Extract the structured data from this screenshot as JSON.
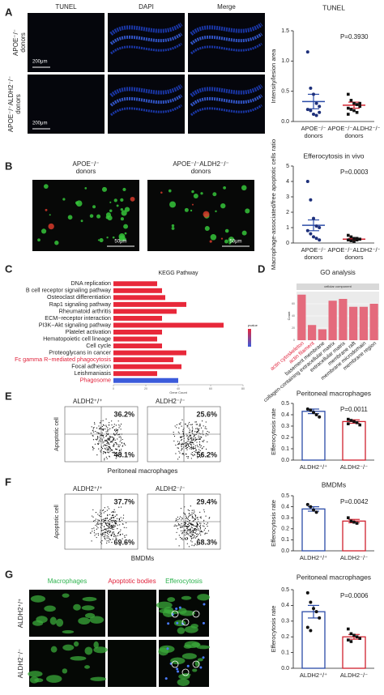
{
  "figure": {
    "panel_labels": [
      "A",
      "B",
      "C",
      "D",
      "E",
      "F",
      "G"
    ],
    "a": {
      "columns": [
        "TUNEL",
        "DAPI",
        "Merge"
      ],
      "rows": [
        "APOE⁻/⁻ donors",
        "APOE⁻/⁻ALDH2⁻/⁻ donors"
      ],
      "scale": "200μm"
    },
    "b": {
      "images": [
        "APOE⁻/⁻ donors",
        "APOE⁻/⁻ALDH2⁻/⁻ donors"
      ],
      "scale": "50μm"
    },
    "e": {
      "groups": [
        "ALDH2⁺/⁺",
        "ALDH2⁻/⁻"
      ],
      "quadrants": [
        [
          "36.2%",
          "48.1%"
        ],
        [
          "25.6%",
          "56.2%"
        ]
      ],
      "ylabel": "Apoptotic cell",
      "xlabel": "Peritoneal macrophages"
    },
    "f": {
      "groups": [
        "ALDH2⁺/⁺",
        "ALDH2⁻/⁻"
      ],
      "quadrants": [
        [
          "37.7%",
          "69.6%"
        ],
        [
          "29.4%",
          "68.3%"
        ]
      ],
      "ylabel": "Apoptotic cell",
      "xlabel": "BMDMs"
    },
    "g": {
      "columns": [
        "Macrophages",
        "Apoptotic bodies",
        "Efferocytosis"
      ],
      "column_colors": [
        "#2bb24c",
        "#e0213a",
        "#2bb24c"
      ],
      "rows": [
        "ALDH2⁺/⁺",
        "ALDH2⁻/⁻"
      ]
    }
  },
  "chart_data": [
    {
      "type": "bar",
      "title": "TUNEL",
      "ylabel": "Intensity/lesion area",
      "annotation": "P=0.3930",
      "bars": false,
      "categories": [
        "APOE⁻/⁻ donors",
        "APOE⁻/⁻ALDH2⁻/⁻ donors"
      ],
      "colors": [
        "#2b4ca8",
        "#d0202e"
      ],
      "values": [
        0.33,
        0.27
      ],
      "errors": [
        0.12,
        0.05
      ],
      "points": [
        [
          1.15,
          0.55,
          0.45,
          0.3,
          0.25,
          0.2,
          0.18,
          0.12,
          0.1,
          0.15
        ],
        [
          0.45,
          0.35,
          0.3,
          0.28,
          0.25,
          0.22,
          0.2,
          0.18,
          0.15,
          0.3,
          0.12
        ]
      ],
      "ylim": [
        0,
        1.5
      ],
      "yticks": [
        {
          "value": 0,
          "label": "0.0"
        },
        0.5,
        {
          "value": 1,
          "label": "1.0"
        },
        1.5
      ]
    },
    {
      "type": "bar",
      "title": "Efferocytosis in vivo",
      "ylabel": "Macrophage-associated/free apoptotic cells ratio",
      "annotation": "P=0.0003",
      "bars": false,
      "categories": [
        "APOE⁻/⁻ donors",
        "APOE⁻/⁻ALDH2⁻/⁻ donors"
      ],
      "colors": [
        "#2b4ca8",
        "#d0202e"
      ],
      "values": [
        1.15,
        0.25
      ],
      "errors": [
        0.35,
        0.05
      ],
      "points": [
        [
          4.0,
          2.8,
          1.6,
          1.1,
          1.0,
          0.8,
          0.6,
          0.4,
          0.3,
          0.2
        ],
        [
          0.5,
          0.4,
          0.3,
          0.3,
          0.25,
          0.2,
          0.15,
          0.1,
          0.2
        ]
      ],
      "ylim": [
        0,
        5
      ],
      "yticks": [
        0,
        1,
        2,
        3,
        4,
        5
      ]
    },
    {
      "type": "barh",
      "title": "KEGG Pathway",
      "xlabel": "Gene Count",
      "legend_title": "pvalue",
      "categories": [
        "DNA replication",
        "B cell receptor signaling pathway",
        "Osteoclast differentiation",
        "Rap1 signaling pathway",
        "Rheumatoid arthritis",
        "ECM−receptor interaction",
        "PI3K−Akt signaling pathway",
        "Platelet activation",
        "Hematopoietic cell lineage",
        "Cell cycle",
        "Proteoglycans in cancer",
        "Fc gamma R−mediated phagocytosis",
        "Focal adhesion",
        "Leishmaniasis",
        "Phagosome"
      ],
      "values": [
        27,
        30,
        32,
        45,
        39,
        30,
        68,
        30,
        27,
        30,
        45,
        37,
        42,
        27,
        40
      ],
      "colors": [
        "#e8283a",
        "#e8283a",
        "#e8283a",
        "#e8283a",
        "#e8283a",
        "#e8283a",
        "#e8283a",
        "#e8283a",
        "#e8283a",
        "#e8283a",
        "#e8283a",
        "#e8283a",
        "#e8283a",
        "#e8283a",
        "#3b5bdb"
      ],
      "label_colors": [
        "#222",
        "#222",
        "#222",
        "#222",
        "#222",
        "#222",
        "#222",
        "#222",
        "#222",
        "#222",
        "#222",
        "#e0213a",
        "#222",
        "#222",
        "#e0213a"
      ],
      "xlim": [
        0,
        80
      ],
      "xticks": [
        0,
        20,
        40,
        60,
        80
      ]
    },
    {
      "type": "column",
      "title": "GO analysis",
      "subtitle": "cellular component",
      "ylabel": "Count",
      "categories": [
        "actin cytoskeleton",
        "actin filament",
        "basement membrane",
        "collagen-containing extracellular matrix",
        "extracellular matrix",
        "membrane raft",
        "membrane microdomain",
        "membrane region"
      ],
      "values": [
        75,
        25,
        18,
        65,
        68,
        55,
        55,
        60
      ],
      "color": "#e46a7c",
      "label_colors": [
        "#e0213a",
        "#e0213a",
        "#222",
        "#222",
        "#222",
        "#222",
        "#222",
        "#222"
      ],
      "ylim": [
        0,
        80
      ],
      "yticks": [
        0,
        20,
        40,
        60
      ]
    },
    {
      "type": "bar",
      "title": "Peritoneal macrophages",
      "ylabel": "Efferocytosis rate",
      "annotation": "P=0.0011",
      "bars": true,
      "categories": [
        "ALDH2⁺/⁺",
        "ALDH2⁻/⁻"
      ],
      "colors": [
        "#2b4ca8",
        "#d0202e"
      ],
      "values": [
        0.43,
        0.34
      ],
      "errors": [
        0.02,
        0.015
      ],
      "points": [
        [
          0.45,
          0.44,
          0.42,
          0.4,
          0.38
        ],
        [
          0.36,
          0.35,
          0.34,
          0.33,
          0.31,
          0.32
        ]
      ],
      "ylim": [
        0,
        0.5
      ],
      "yticks": [
        {
          "value": 0,
          "label": "0.0"
        },
        0.1,
        0.2,
        0.3,
        0.4,
        0.5
      ]
    },
    {
      "type": "bar",
      "title": "BMDMs",
      "ylabel": "Efferocytosis rate",
      "annotation": "P=0.0042",
      "bars": true,
      "categories": [
        "ALDH2⁺/⁺",
        "ALDH2⁻/⁻"
      ],
      "colors": [
        "#2b4ca8",
        "#d0202e"
      ],
      "values": [
        0.38,
        0.27
      ],
      "errors": [
        0.02,
        0.015
      ],
      "points": [
        [
          0.42,
          0.4,
          0.37,
          0.35
        ],
        [
          0.3,
          0.27,
          0.26,
          0.25
        ]
      ],
      "ylim": [
        0,
        0.5
      ],
      "yticks": [
        {
          "value": 0,
          "label": "0.0"
        },
        0.1,
        0.2,
        0.3,
        0.4,
        0.5
      ]
    },
    {
      "type": "bar",
      "title": "Peritoneal macrophages",
      "ylabel": "Efferocytosis rate",
      "annotation": "P=0.0006",
      "bars": true,
      "categories": [
        "ALDH2⁺/⁺",
        "ALDH2⁻/⁻"
      ],
      "colors": [
        "#2b4ca8",
        "#d0202e"
      ],
      "values": [
        0.36,
        0.2
      ],
      "errors": [
        0.04,
        0.015
      ],
      "points": [
        [
          0.48,
          0.42,
          0.38,
          0.36,
          0.32,
          0.26,
          0.24
        ],
        [
          0.25,
          0.22,
          0.21,
          0.2,
          0.19,
          0.18,
          0.17
        ]
      ],
      "ylim": [
        0,
        0.5
      ],
      "yticks": [
        {
          "value": 0,
          "label": "0.0"
        },
        0.1,
        0.2,
        0.3,
        0.4,
        0.5
      ]
    }
  ]
}
